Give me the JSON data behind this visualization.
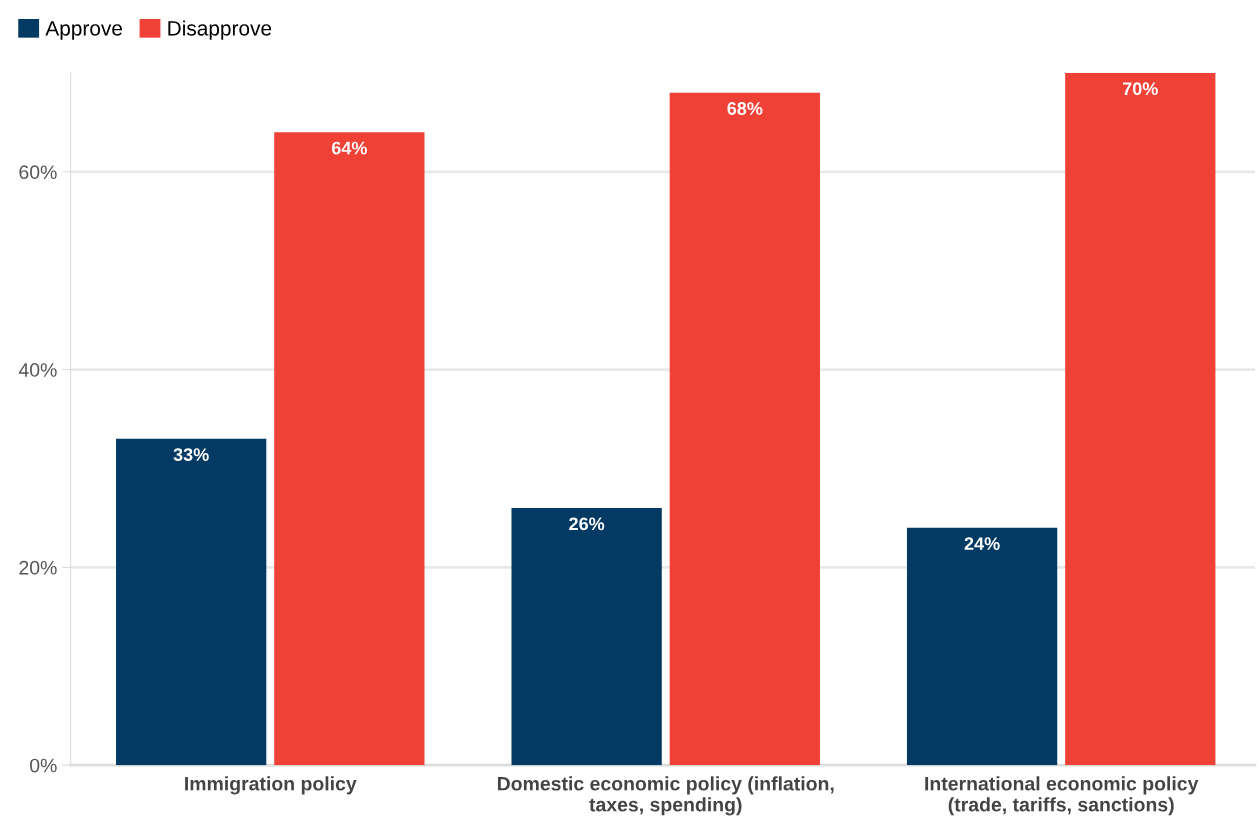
{
  "chart_data": {
    "type": "bar",
    "categories": [
      "Immigration policy",
      "Domestic economic policy (inflation,\ntaxes, spending)",
      "International economic policy\n(trade, tariffs, sanctions)"
    ],
    "series": [
      {
        "name": "Approve",
        "color": "#033a63",
        "values": [
          33,
          26,
          24
        ]
      },
      {
        "name": "Disapprove",
        "color": "#ef4136",
        "values": [
          64,
          68,
          70
        ]
      }
    ],
    "ylim": [
      0,
      70
    ],
    "yticks": [
      {
        "value": 0,
        "label": "0%"
      },
      {
        "value": 20,
        "label": "20%"
      },
      {
        "value": 40,
        "label": "40%"
      },
      {
        "value": 60,
        "label": "60%"
      }
    ],
    "value_labels": [
      [
        "33%",
        "26%",
        "24%"
      ],
      [
        "64%",
        "68%",
        "70%"
      ]
    ],
    "grid": "y",
    "legend": "top left"
  }
}
